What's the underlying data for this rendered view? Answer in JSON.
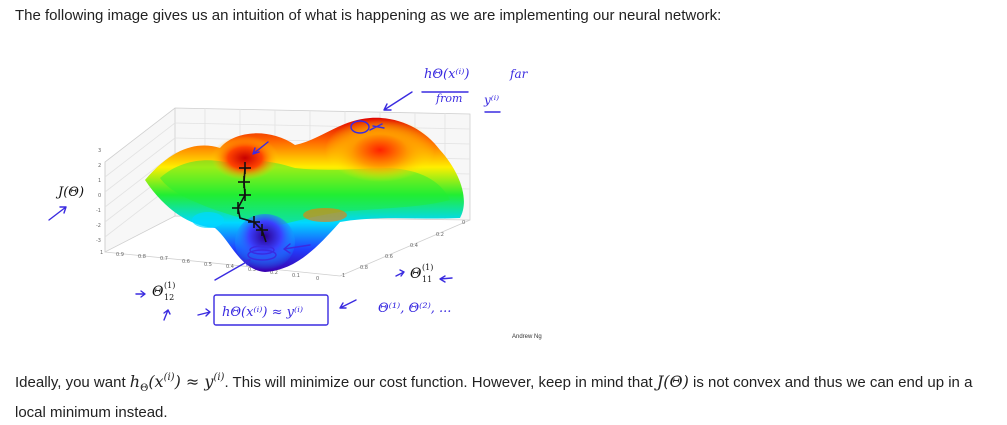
{
  "intro_text": "The following image gives us an intuition of what is happening as we are implementing our neural network:",
  "figure": {
    "y_axis_label": "J(Θ)",
    "y_ticks": [
      "3",
      "2",
      "1",
      "0",
      "-1",
      "-2",
      "-3"
    ],
    "x_ticks": [
      "1",
      "0.9",
      "0.8",
      "0.7",
      "0.6",
      "0.5",
      "0.4",
      "0.3",
      "0.2",
      "0.1",
      "0"
    ],
    "z_ticks": [
      "0",
      "0.2",
      "0.4",
      "0.6",
      "0.8",
      "1"
    ],
    "credit": "Andrew Ng",
    "ann_h_top": "hΘ(x⁽ⁱ⁾)",
    "ann_far": "far",
    "ann_from": "from",
    "ann_y": "y⁽ⁱ⁾",
    "ann_h_bottom": "hΘ(x⁽ⁱ⁾) ≈ y⁽ⁱ⁾",
    "ann_thetas": "Θ⁽¹⁾, Θ⁽²⁾, ...",
    "theta_11": "Θ",
    "theta_11_sub": "11",
    "theta_11_sup": "(1)",
    "theta_12": "Θ",
    "theta_12_sub": "12",
    "theta_12_sup": "(1)"
  },
  "para": {
    "p1": "Ideally, you want ",
    "m1_h": "h",
    "m1_sub": "Θ",
    "m1_args": "(x",
    "m1_sup": "(i)",
    "m1_close": ") ≈ y",
    "m1_sup2": "(i)",
    "p2": ". This will minimize our cost function. However, keep in mind that ",
    "m2": "J(Θ)",
    "p3": " is not convex and thus we can end up in a local minimum instead."
  }
}
